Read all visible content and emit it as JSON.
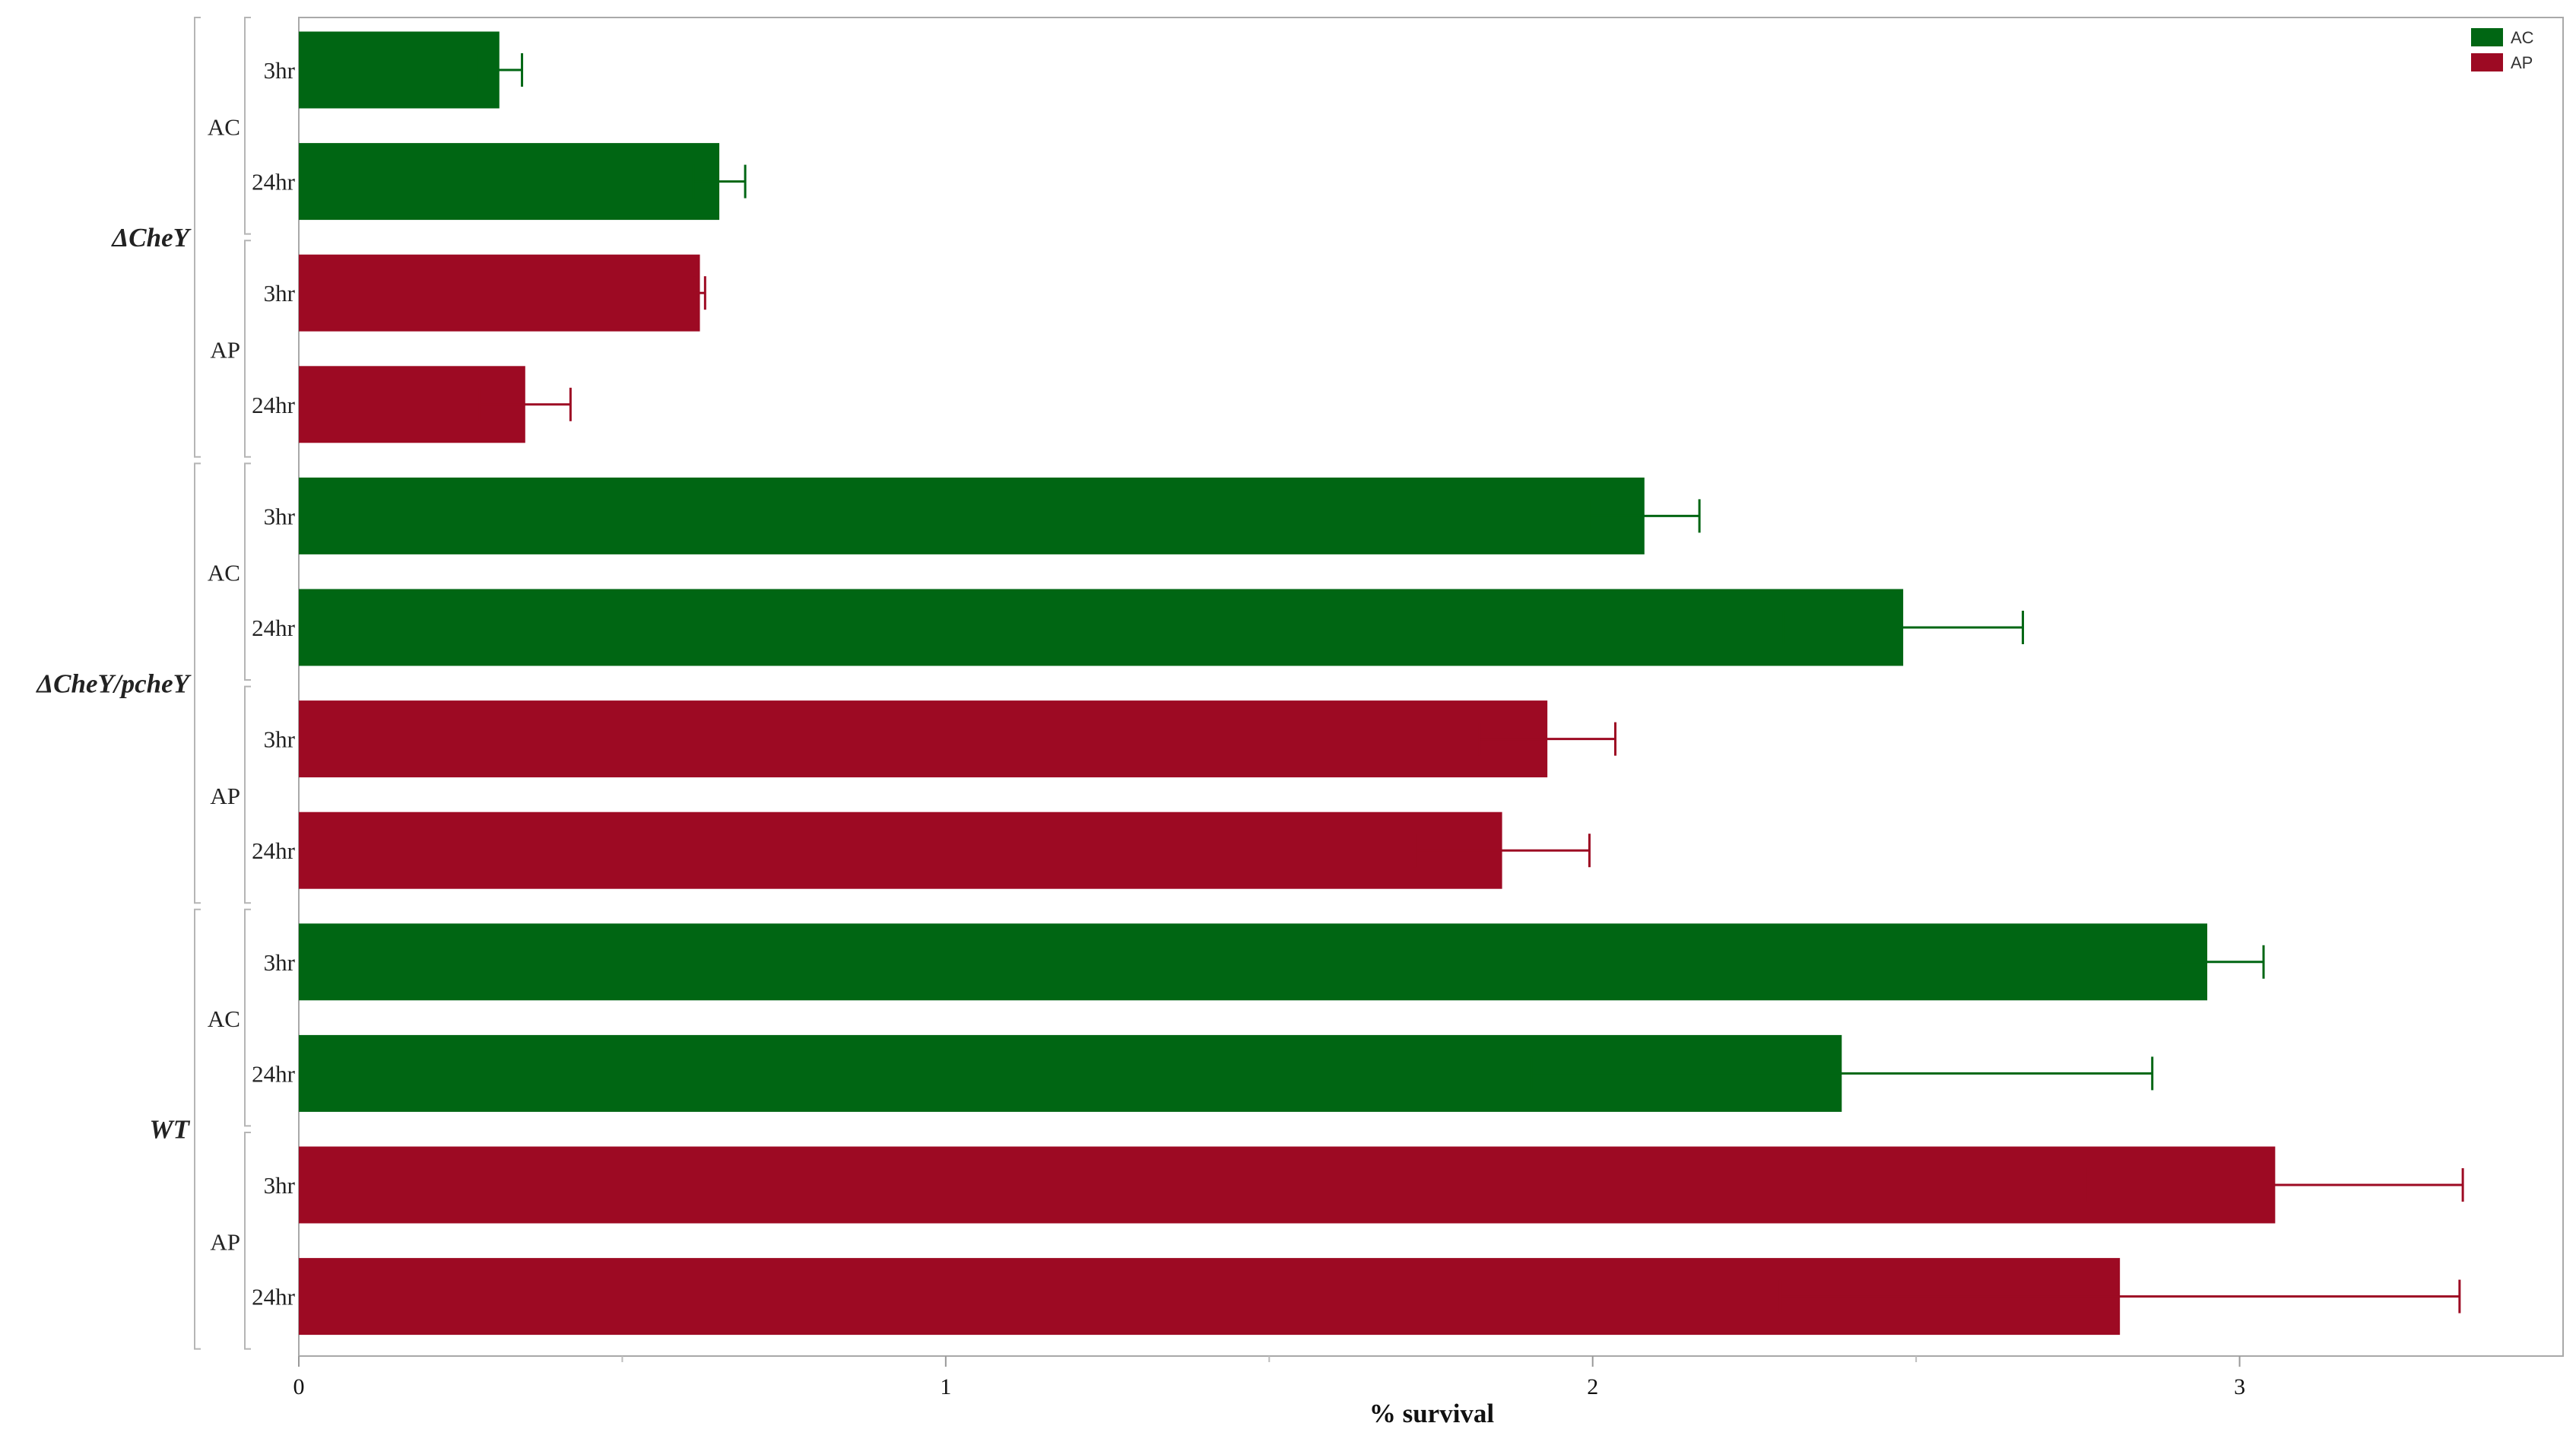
{
  "chart_data": {
    "type": "bar",
    "orientation": "horizontal",
    "xlabel": "% survival",
    "xlim": [
      0,
      3.5
    ],
    "xticks": [
      0,
      1,
      2,
      3
    ],
    "grid": false,
    "legend_position": "top-right",
    "series": [
      {
        "name": "AC",
        "color": "#006613"
      },
      {
        "name": "AP",
        "color": "#9d0a23"
      }
    ],
    "groups": [
      {
        "label": "ΔCheY",
        "subgroups": [
          {
            "label": "AC",
            "bars": [
              {
                "label": "3hr",
                "value": 0.31,
                "error": 0.035
              },
              {
                "label": "24hr",
                "value": 0.65,
                "error": 0.04
              }
            ]
          },
          {
            "label": "AP",
            "bars": [
              {
                "label": "3hr",
                "value": 0.62,
                "error": 0.008
              },
              {
                "label": "24hr",
                "value": 0.35,
                "error": 0.07
              }
            ]
          }
        ]
      },
      {
        "label": "ΔCheY/pcheY",
        "subgroups": [
          {
            "label": "AC",
            "bars": [
              {
                "label": "3hr",
                "value": 2.08,
                "error": 0.085
              },
              {
                "label": "24hr",
                "value": 2.48,
                "error": 0.185
              }
            ]
          },
          {
            "label": "AP",
            "bars": [
              {
                "label": "3hr",
                "value": 1.93,
                "error": 0.105
              },
              {
                "label": "24hr",
                "value": 1.86,
                "error": 0.135
              }
            ]
          }
        ]
      },
      {
        "label": "WT",
        "subgroups": [
          {
            "label": "AC",
            "bars": [
              {
                "label": "3hr",
                "value": 2.95,
                "error": 0.087
              },
              {
                "label": "24hr",
                "value": 2.385,
                "error": 0.48
              }
            ]
          },
          {
            "label": "AP",
            "bars": [
              {
                "label": "3hr",
                "value": 3.055,
                "error": 0.29
              },
              {
                "label": "24hr",
                "value": 2.815,
                "error": 0.525
              }
            ]
          }
        ]
      }
    ]
  }
}
